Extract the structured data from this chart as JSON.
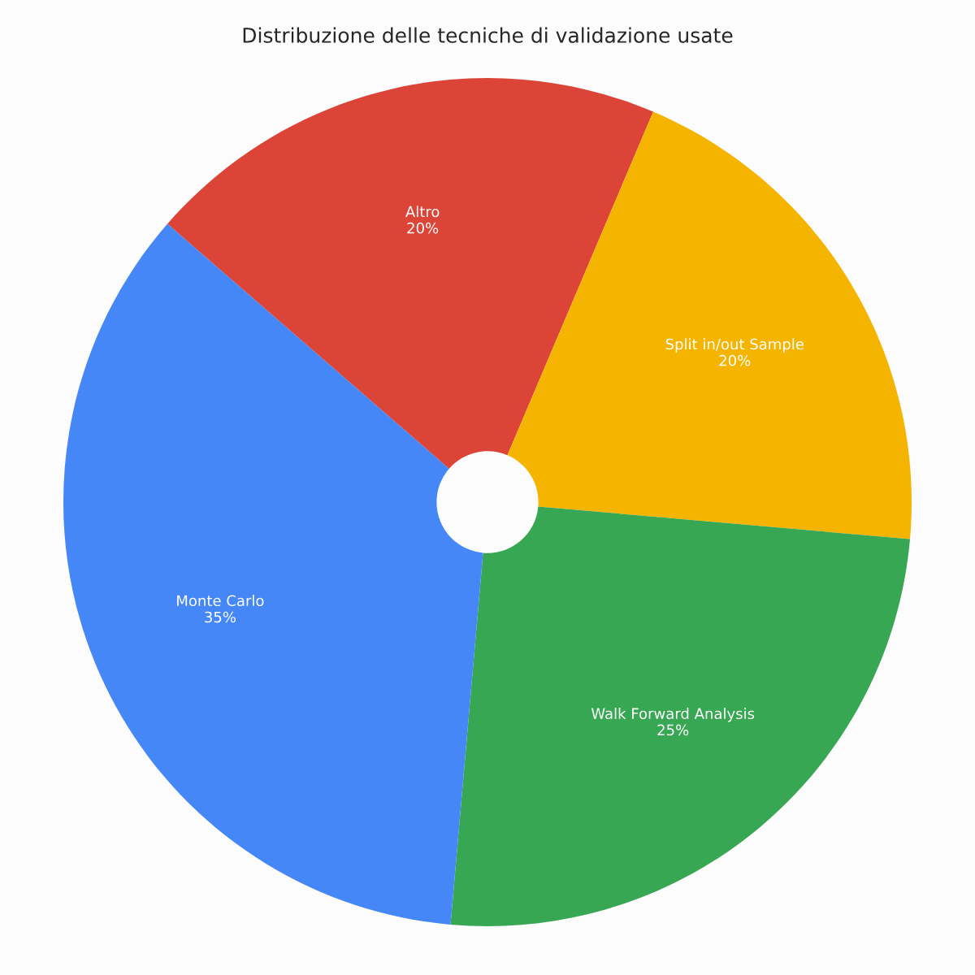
{
  "chart_data": {
    "type": "pie",
    "title": "Distribuzione delle tecniche di validazione usate",
    "categories": [
      "Altro",
      "Split in/out Sample",
      "Walk Forward Analysis",
      "Monte Carlo"
    ],
    "values": [
      20,
      20,
      25,
      35
    ],
    "value_labels": [
      "20%",
      "20%",
      "25%",
      "35%"
    ],
    "colors": [
      "#db4437",
      "#f4b400",
      "#37a753",
      "#4687f7"
    ],
    "legend": false
  }
}
